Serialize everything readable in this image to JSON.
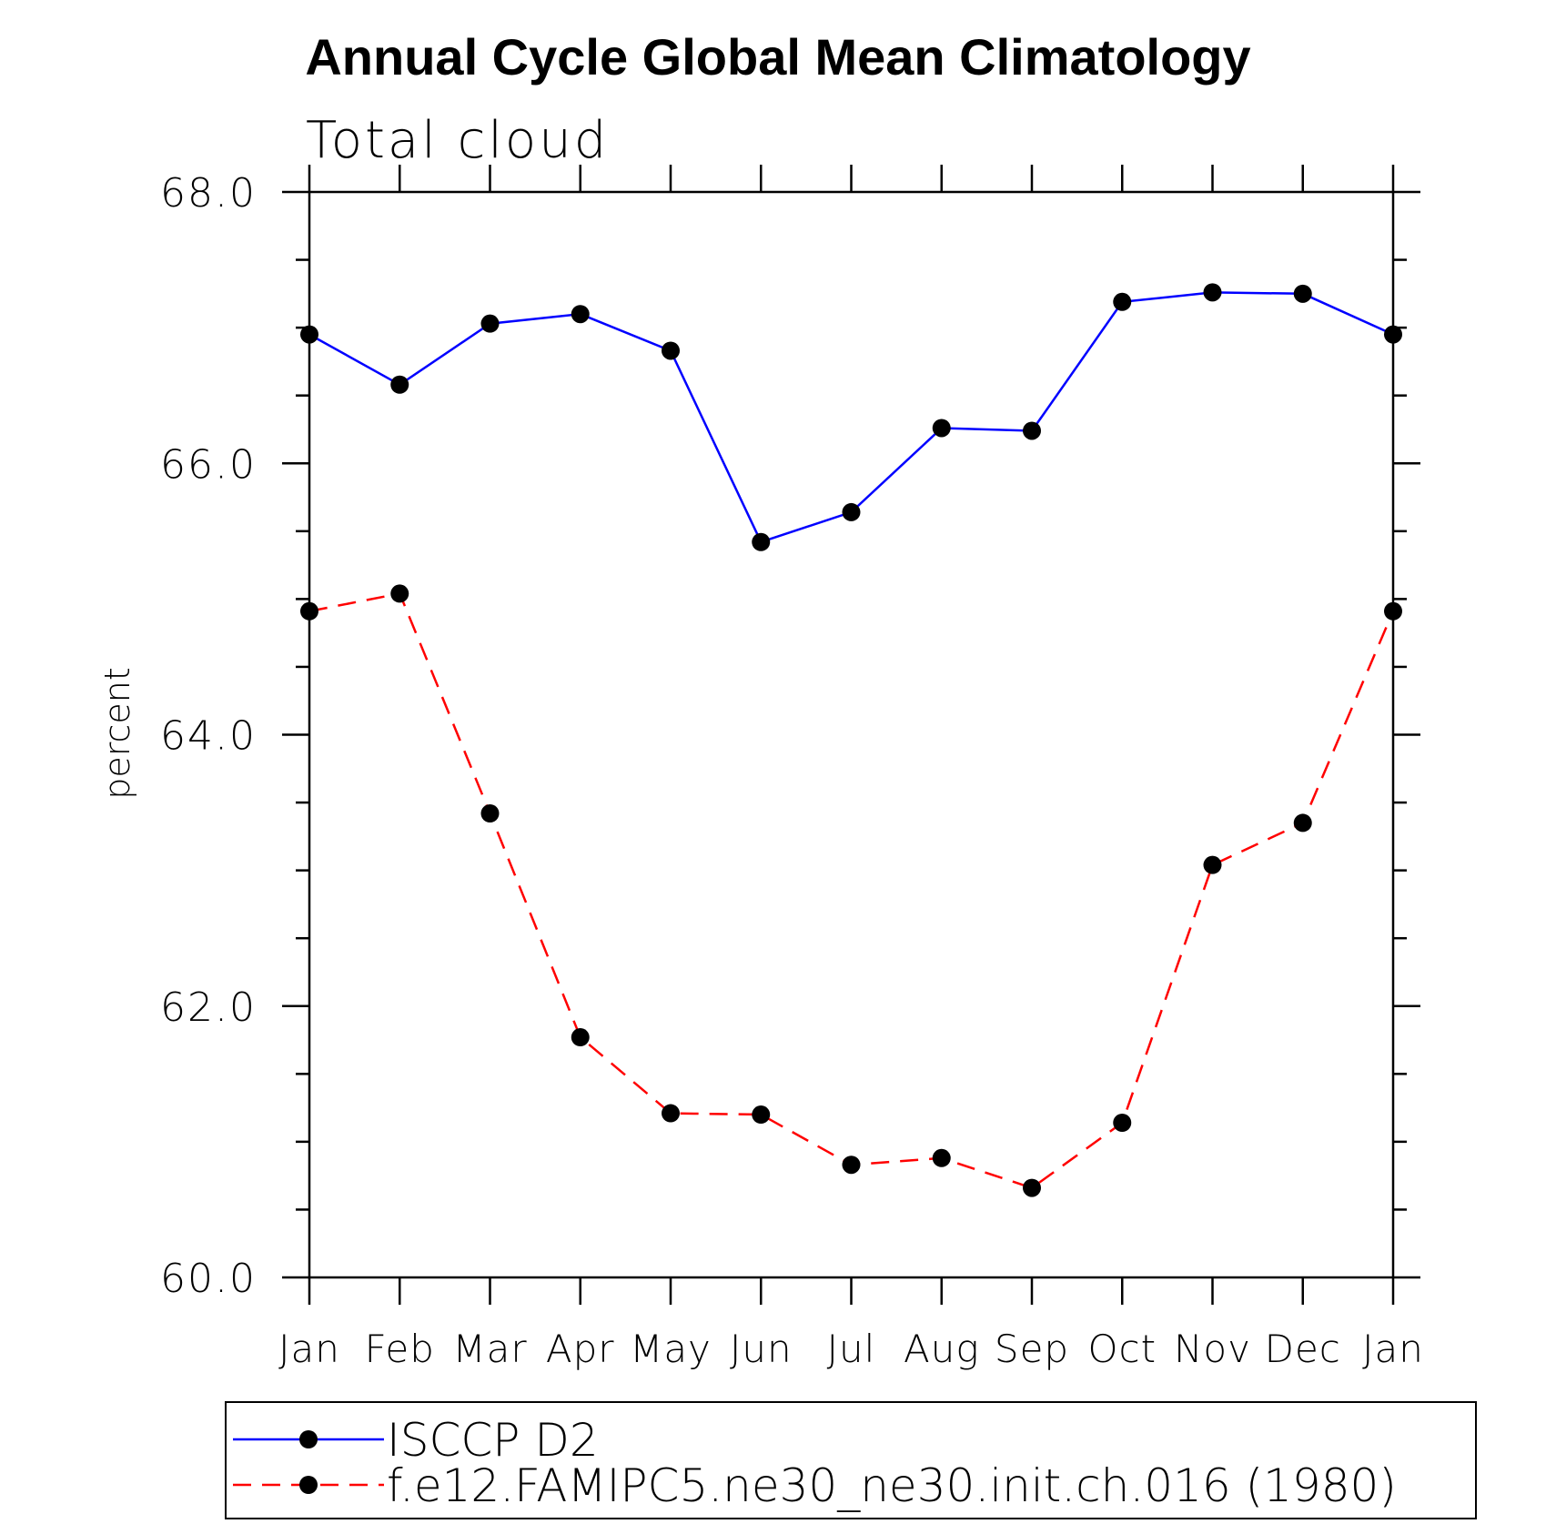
{
  "chart_data": {
    "type": "line",
    "title": "Annual Cycle Global Mean Climatology",
    "subtitle": "Total cloud",
    "xlabel": "",
    "ylabel": "percent",
    "categories": [
      "Jan",
      "Feb",
      "Mar",
      "Apr",
      "May",
      "Jun",
      "Jul",
      "Aug",
      "Sep",
      "Oct",
      "Nov",
      "Dec",
      "Jan"
    ],
    "ylim": [
      60.0,
      68.0
    ],
    "ytick_labels": [
      "60.0",
      "62.0",
      "64.0",
      "66.0",
      "68.0"
    ],
    "ytick_values": [
      60.0,
      62.0,
      64.0,
      66.0,
      68.0
    ],
    "grid": false,
    "legend_position": "bottom",
    "series": [
      {
        "name": "ISCCP D2",
        "color": "#0000ff",
        "dash": "solid",
        "values": [
          66.95,
          66.58,
          67.03,
          67.1,
          66.83,
          65.42,
          65.64,
          66.26,
          66.24,
          67.19,
          67.26,
          67.25,
          66.95
        ]
      },
      {
        "name": "f.e12.FAMIPC5.ne30_ne30.init.ch.016 (1980)",
        "color": "#ff0000",
        "dash": "dashed",
        "values": [
          64.91,
          65.04,
          63.42,
          61.77,
          61.21,
          61.2,
          60.83,
          60.88,
          60.66,
          61.14,
          63.04,
          63.35,
          64.91
        ]
      }
    ],
    "marker_color": "#000000"
  }
}
